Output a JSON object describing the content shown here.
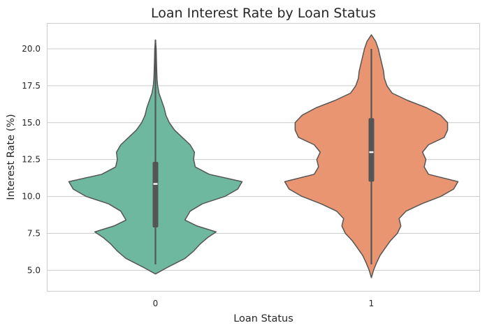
{
  "chart_data": {
    "type": "violin",
    "title": "Loan Interest Rate by Loan Status",
    "xlabel": "Loan Status",
    "ylabel": "Interest Rate (%)",
    "categories": [
      "0",
      "1"
    ],
    "yticks": [
      "5.0",
      "7.5",
      "10.0",
      "12.5",
      "15.0",
      "17.5",
      "20.0"
    ],
    "ylim": [
      3.6,
      21.7
    ],
    "grid": "horizontal",
    "colors": [
      "#6fb8a0",
      "#e99572"
    ],
    "violins": [
      {
        "category": "0",
        "color": "#6fb8a0",
        "median": 10.85,
        "q1": 7.9,
        "q3": 12.35,
        "whisker_low": 5.4,
        "whisker_high": 20.6,
        "profile": [
          [
            4.75,
            0.0
          ],
          [
            5.2,
            0.14
          ],
          [
            5.8,
            0.34
          ],
          [
            6.3,
            0.44
          ],
          [
            6.8,
            0.52
          ],
          [
            7.2,
            0.6
          ],
          [
            7.6,
            0.7
          ],
          [
            8.0,
            0.48
          ],
          [
            8.4,
            0.34
          ],
          [
            9.0,
            0.4
          ],
          [
            9.5,
            0.54
          ],
          [
            10.0,
            0.8
          ],
          [
            10.5,
            0.95
          ],
          [
            11.0,
            1.0
          ],
          [
            11.5,
            0.62
          ],
          [
            12.0,
            0.46
          ],
          [
            12.5,
            0.44
          ],
          [
            13.0,
            0.45
          ],
          [
            13.5,
            0.4
          ],
          [
            14.0,
            0.31
          ],
          [
            14.5,
            0.22
          ],
          [
            15.0,
            0.16
          ],
          [
            15.5,
            0.12
          ],
          [
            16.0,
            0.1
          ],
          [
            16.5,
            0.07
          ],
          [
            17.0,
            0.04
          ],
          [
            17.5,
            0.025
          ],
          [
            18.0,
            0.018
          ],
          [
            19.0,
            0.012
          ],
          [
            20.0,
            0.008
          ],
          [
            20.6,
            0.0
          ]
        ]
      },
      {
        "category": "1",
        "color": "#e99572",
        "median": 13.0,
        "q1": 11.0,
        "q3": 15.3,
        "whisker_low": 5.4,
        "whisker_high": 20.0,
        "profile": [
          [
            4.5,
            0.0
          ],
          [
            5.0,
            0.025
          ],
          [
            5.5,
            0.06
          ],
          [
            6.0,
            0.1
          ],
          [
            6.5,
            0.16
          ],
          [
            7.0,
            0.22
          ],
          [
            7.5,
            0.3
          ],
          [
            8.0,
            0.34
          ],
          [
            8.5,
            0.32
          ],
          [
            9.0,
            0.4
          ],
          [
            9.5,
            0.58
          ],
          [
            10.0,
            0.8
          ],
          [
            10.5,
            0.95
          ],
          [
            11.0,
            1.0
          ],
          [
            11.5,
            0.66
          ],
          [
            12.0,
            0.61
          ],
          [
            12.5,
            0.63
          ],
          [
            13.0,
            0.59
          ],
          [
            13.5,
            0.66
          ],
          [
            14.0,
            0.84
          ],
          [
            14.5,
            0.88
          ],
          [
            15.0,
            0.88
          ],
          [
            15.5,
            0.8
          ],
          [
            16.0,
            0.64
          ],
          [
            16.5,
            0.42
          ],
          [
            17.0,
            0.24
          ],
          [
            17.5,
            0.18
          ],
          [
            18.0,
            0.15
          ],
          [
            18.5,
            0.14
          ],
          [
            19.0,
            0.12
          ],
          [
            19.5,
            0.1
          ],
          [
            20.0,
            0.08
          ],
          [
            20.5,
            0.05
          ],
          [
            20.95,
            0.0
          ]
        ]
      }
    ]
  }
}
